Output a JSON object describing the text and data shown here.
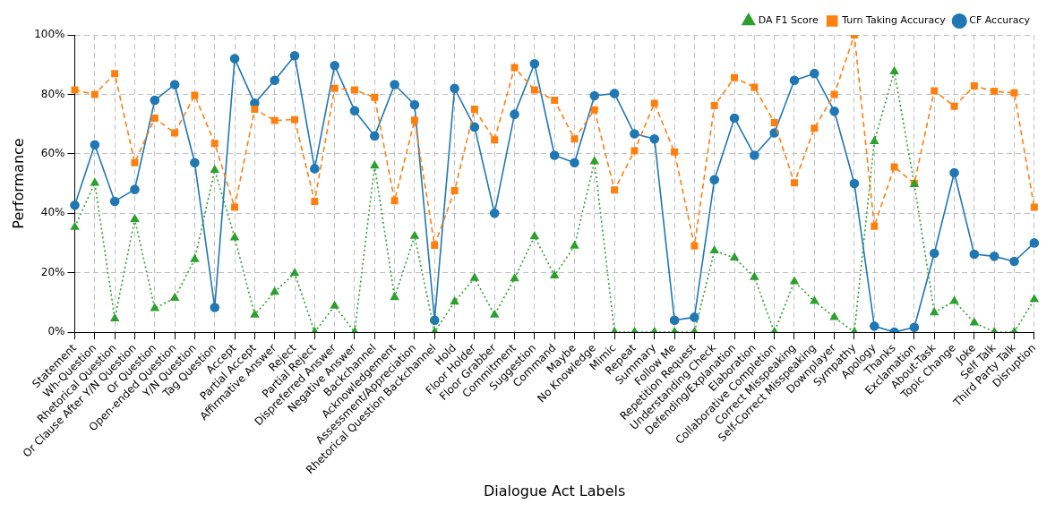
{
  "chart_data": {
    "type": "line",
    "xlabel": "Dialogue Act Labels",
    "ylabel": "Performance",
    "categories": [
      "Statement",
      "Wh-Question",
      "Rhetorical Question",
      "Or Clause After Y/N Question",
      "Or Question",
      "Open-ended Question",
      "Y/N Question",
      "Tag Question",
      "Accept",
      "Partial Accept",
      "Affirmative Answer",
      "Reject",
      "Partial Reject",
      "Dispreferred Answer",
      "Negative Answer",
      "Backchannel",
      "Acknowledgement",
      "Assessment/Appreciation",
      "Rhetorical Question Backchannel",
      "Hold",
      "Floor Holder",
      "Floor Grabber",
      "Commitment",
      "Suggestion",
      "Command",
      "Maybe",
      "No Knowledge",
      "Mimic",
      "Repeat",
      "Summary",
      "Follow Me",
      "Repetition Request",
      "Understanding Check",
      "Defending/Explanation",
      "Elaboration",
      "Collaborative Completion",
      "Correct Misspeaking",
      "Self-Correct Misspeaking",
      "Downplayer",
      "Sympathy",
      "Apology",
      "Thanks",
      "Exclamation",
      "About-Task",
      "Topic Change",
      "Joke",
      "Self Talk",
      "Third Party Talk",
      "Disruption"
    ],
    "series": [
      {
        "name": "CF Accuracy",
        "color": "#1f77b4",
        "marker": "circle",
        "line_style": "solid",
        "values": [
          42.7,
          63,
          44,
          48,
          78,
          83.3,
          57,
          8.3,
          92,
          77,
          84.7,
          93,
          55,
          89.7,
          74.5,
          66,
          83.3,
          76.5,
          4,
          82,
          69,
          40,
          73.3,
          90.3,
          59.5,
          57,
          79.5,
          80.3,
          66.7,
          65,
          4,
          5,
          51.3,
          72,
          59.5,
          67,
          84.7,
          87,
          74.3,
          50,
          2,
          0,
          1.6,
          26.5,
          53.6,
          26.2,
          25.5,
          23.8,
          30
        ]
      },
      {
        "name": "Turn Taking Accuracy",
        "color": "#ff7f0e",
        "marker": "square",
        "line_style": "dashed",
        "values": [
          81.5,
          80,
          87,
          57,
          72,
          67,
          79.7,
          63.5,
          42,
          75,
          71.2,
          71.5,
          44,
          82,
          81.5,
          79,
          44.2,
          71.3,
          29.2,
          47.6,
          75,
          64.7,
          89,
          81.5,
          78,
          65,
          74.8,
          47.8,
          61,
          77,
          60.6,
          29,
          76.2,
          85.6,
          82.4,
          70.5,
          50.2,
          68.6,
          80,
          100,
          35.6,
          55.6,
          50,
          81.2,
          76,
          82.8,
          81,
          80.5,
          42
        ]
      },
      {
        "name": "DA F1 Score",
        "color": "#2ca02c",
        "marker": "triangle",
        "line_style": "dotted",
        "values": [
          35.3,
          50.2,
          4.5,
          38,
          8,
          11.5,
          24.5,
          54.5,
          31.8,
          5.8,
          13.5,
          19.8,
          0,
          8.8,
          0,
          56,
          11.7,
          32.3,
          0,
          10.2,
          18.2,
          5.8,
          18,
          32.2,
          19,
          29,
          57.4,
          0,
          0,
          0,
          0,
          0,
          27.4,
          25,
          18.5,
          0,
          17,
          10.4,
          5,
          0,
          64.2,
          87.7,
          49.7,
          6.6,
          10.4,
          3.2,
          0,
          0,
          11
        ]
      }
    ],
    "ylim": [
      0,
      100
    ],
    "yticks": [
      {
        "value": 0,
        "label": "0%"
      },
      {
        "value": 20,
        "label": "20%"
      },
      {
        "value": 40,
        "label": "40%"
      },
      {
        "value": 60,
        "label": "60%"
      },
      {
        "value": 80,
        "label": "80%"
      },
      {
        "value": 100,
        "label": "100%"
      }
    ],
    "grid": true,
    "legend": "top right"
  }
}
